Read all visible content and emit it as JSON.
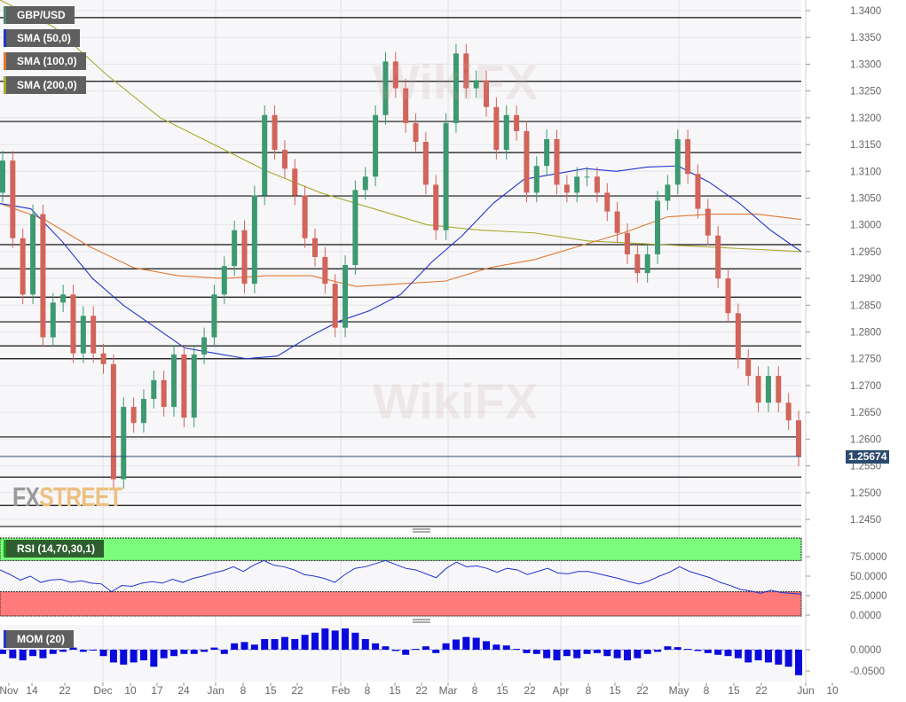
{
  "chart_data": {
    "type": "candlestick",
    "symbol": "GBP/USD",
    "legend": [
      {
        "label": "GBP/USD",
        "color": "#4a8a7a"
      },
      {
        "label": "SMA (50,0)",
        "color": "#2233cc"
      },
      {
        "label": "SMA (100,0)",
        "color": "#e07830"
      },
      {
        "label": "SMA (200,0)",
        "color": "#a8a830"
      }
    ],
    "last_price": "1.25674",
    "ylim": [
      1.2435,
      1.342
    ],
    "y_ticks": [
      "1.3400",
      "1.3350",
      "1.3300",
      "1.3250",
      "1.3200",
      "1.3150",
      "1.3100",
      "1.3050",
      "1.3000",
      "1.2950",
      "1.2900",
      "1.2850",
      "1.2800",
      "1.2750",
      "1.2700",
      "1.2650",
      "1.2600",
      "1.2550",
      "1.2500",
      "1.2450"
    ],
    "x_ticks": [
      "Nov",
      "14",
      "22",
      "Dec",
      "10",
      "17",
      "24",
      "Jan",
      "8",
      "15",
      "22",
      "Feb",
      "8",
      "15",
      "22",
      "Mar",
      "8",
      "15",
      "22",
      "Apr",
      "8",
      "15",
      "22",
      "May",
      "8",
      "15",
      "22",
      "Jun",
      "10"
    ],
    "levels": [
      1.3387,
      1.3268,
      1.3193,
      1.3135,
      1.3054,
      1.2963,
      1.2918,
      1.2865,
      1.2819,
      1.2774,
      1.275,
      1.2604,
      1.2529,
      1.2476
    ],
    "close": [
      1.312,
      1.2975,
      1.287,
      1.302,
      1.279,
      1.2855,
      1.287,
      1.276,
      1.283,
      1.276,
      1.274,
      1.2525,
      1.266,
      1.263,
      1.2675,
      1.271,
      1.266,
      1.2758,
      1.264,
      1.2758,
      1.279,
      1.287,
      1.2923,
      1.299,
      1.289,
      1.3055,
      1.3205,
      1.314,
      1.3105,
      1.3055,
      1.2975,
      1.294,
      1.289,
      1.2808,
      1.2925,
      1.3065,
      1.309,
      1.3205,
      1.3305,
      1.3255,
      1.319,
      1.3155,
      1.3075,
      1.299,
      1.319,
      1.332,
      1.3255,
      1.327,
      1.322,
      1.314,
      1.3205,
      1.3175,
      1.306,
      1.311,
      1.316,
      1.3075,
      1.306,
      1.309,
      1.309,
      1.306,
      1.3025,
      1.2985,
      1.2945,
      1.291,
      1.2945,
      1.3045,
      1.3075,
      1.316,
      1.3095,
      1.303,
      1.298,
      1.29,
      1.2835,
      1.275,
      1.2718,
      1.2668,
      1.2718,
      1.2668,
      1.2635,
      1.2567
    ],
    "open_first": 1.306,
    "sma50": [
      1.304,
      1.303,
      1.297,
      1.29,
      1.285,
      1.281,
      1.277,
      1.276,
      1.275,
      1.2755,
      1.279,
      1.282,
      1.284,
      1.287,
      1.293,
      1.298,
      1.304,
      1.3085,
      1.3095,
      1.3105,
      1.31,
      1.3108,
      1.311,
      1.308,
      1.304,
      1.299,
      1.295
    ],
    "sma100": [
      1.304,
      1.301,
      1.296,
      1.292,
      1.2905,
      1.29,
      1.2905,
      1.2905,
      1.2885,
      1.289,
      1.2895,
      1.292,
      1.2935,
      1.296,
      1.2985,
      1.3015,
      1.302,
      1.302,
      1.301
    ],
    "sma200": [
      1.342,
      1.337,
      1.328,
      1.32,
      1.315,
      1.31,
      1.306,
      1.303,
      1.3,
      1.299,
      1.2985,
      1.297,
      1.2965,
      1.296,
      1.2955,
      1.295
    ],
    "rsi": {
      "label": "RSI (14,70,30,1)",
      "overbought": 70,
      "oversold": 30,
      "ticks": [
        "75.0000",
        "50.0000",
        "25.0000",
        "0.0000"
      ],
      "values": [
        58,
        52,
        45,
        50,
        42,
        45,
        46,
        42,
        44,
        41,
        40,
        30,
        38,
        37,
        41,
        43,
        41,
        46,
        42,
        47,
        50,
        54,
        57,
        62,
        56,
        64,
        70,
        64,
        62,
        58,
        52,
        50,
        47,
        42,
        52,
        60,
        62,
        66,
        70,
        65,
        60,
        58,
        53,
        48,
        60,
        68,
        62,
        63,
        60,
        55,
        60,
        58,
        52,
        56,
        60,
        54,
        53,
        56,
        56,
        53,
        50,
        47,
        43,
        40,
        44,
        50,
        55,
        62,
        56,
        52,
        48,
        42,
        38,
        33,
        31,
        28,
        32,
        29,
        28,
        27
      ]
    },
    "mom": {
      "label": "MOM (20)",
      "ticks": [
        "0.0000",
        "-0.0500"
      ],
      "values": [
        -0.01,
        -0.02,
        -0.025,
        -0.015,
        -0.02,
        -0.01,
        -0.005,
        0.005,
        -0.005,
        0.0,
        -0.015,
        -0.03,
        -0.035,
        -0.03,
        -0.025,
        -0.04,
        -0.02,
        -0.015,
        -0.01,
        -0.01,
        -0.005,
        0.005,
        -0.01,
        0.015,
        0.018,
        0.012,
        0.025,
        0.025,
        0.03,
        0.025,
        0.035,
        0.04,
        0.05,
        0.045,
        0.05,
        0.04,
        0.025,
        0.015,
        0.008,
        -0.003,
        -0.012,
        0.002,
        0.008,
        -0.008,
        0.015,
        0.024,
        0.03,
        0.028,
        0.02,
        0.012,
        0.01,
        0.002,
        -0.008,
        -0.01,
        -0.02,
        -0.025,
        -0.015,
        -0.02,
        -0.01,
        -0.008,
        -0.015,
        -0.02,
        -0.025,
        -0.02,
        -0.01,
        -0.005,
        0.008,
        0.006,
        0.002,
        -0.003,
        -0.008,
        -0.012,
        -0.015,
        -0.02,
        -0.03,
        -0.025,
        -0.03,
        -0.035,
        -0.04,
        -0.06
      ]
    },
    "colors": {
      "up": "#3d9970",
      "down": "#d2645a",
      "rsi_line": "#2233cc",
      "mom_bar": "#0a0add",
      "overbought_zone": "#7cfc7c",
      "oversold_zone": "#ff7a7a",
      "price_tag": "#2c4a6e"
    }
  },
  "watermarks": {
    "wikifx": "WikiFX",
    "fxstreet_fx": "FX",
    "fxstreet_street": "STREET"
  }
}
